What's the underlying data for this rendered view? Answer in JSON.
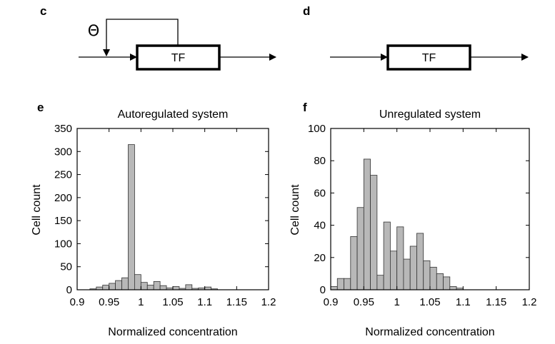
{
  "diagrams": {
    "c": {
      "letter": "c",
      "box_label": "TF",
      "feedback_symbol": "Θ"
    },
    "d": {
      "letter": "d",
      "box_label": "TF"
    }
  },
  "chart_data": [
    {
      "type": "bar",
      "letter": "e",
      "title": "Autoregulated system",
      "xlabel": "Normalized concentration",
      "ylabel": "Cell count",
      "xlim": [
        0.9,
        1.2
      ],
      "ylim": [
        0,
        350
      ],
      "xticks": [
        0.9,
        0.95,
        1,
        1.05,
        1.1,
        1.15,
        1.2
      ],
      "xtick_labels": [
        "0.9",
        "0.95",
        "1",
        "1.05",
        "1.1",
        "1.15",
        "1.2"
      ],
      "yticks": [
        0,
        50,
        100,
        150,
        200,
        250,
        300,
        350
      ],
      "ytick_labels": [
        "0",
        "50",
        "100",
        "150",
        "200",
        "250",
        "300",
        "350"
      ],
      "bin_width": 0.01,
      "bin_starts": [
        0.92,
        0.93,
        0.94,
        0.95,
        0.96,
        0.97,
        0.98,
        0.99,
        1.0,
        1.01,
        1.02,
        1.03,
        1.04,
        1.05,
        1.06,
        1.07,
        1.08,
        1.09,
        1.1,
        1.11,
        1.12,
        1.13,
        1.14
      ],
      "values": [
        2,
        6,
        10,
        14,
        20,
        26,
        315,
        33,
        16,
        10,
        18,
        9,
        4,
        7,
        3,
        11,
        3,
        4,
        6,
        2,
        0,
        0,
        0
      ]
    },
    {
      "type": "bar",
      "letter": "f",
      "title": "Unregulated system",
      "xlabel": "Normalized concentration",
      "ylabel": "Cell count",
      "xlim": [
        0.9,
        1.2
      ],
      "ylim": [
        0,
        100
      ],
      "xticks": [
        0.9,
        0.95,
        1,
        1.05,
        1.1,
        1.15,
        1.2
      ],
      "xtick_labels": [
        "0.9",
        "0.95",
        "1",
        "1.05",
        "1.1",
        "1.15",
        "1.2"
      ],
      "yticks": [
        0,
        20,
        40,
        60,
        80,
        100
      ],
      "ytick_labels": [
        "0",
        "20",
        "40",
        "60",
        "80",
        "100"
      ],
      "bin_width": 0.01,
      "bin_starts": [
        0.9,
        0.91,
        0.92,
        0.93,
        0.94,
        0.95,
        0.96,
        0.97,
        0.98,
        0.99,
        1.0,
        1.01,
        1.02,
        1.03,
        1.04,
        1.05,
        1.06,
        1.07,
        1.08,
        1.09,
        1.1,
        1.11,
        1.12,
        1.13,
        1.14,
        1.15,
        1.16,
        1.17,
        1.18,
        1.19
      ],
      "values": [
        2,
        7,
        7,
        33,
        51,
        81,
        71,
        9,
        42,
        24,
        39,
        19,
        27,
        35,
        18,
        14,
        10,
        8,
        2,
        1,
        0,
        0,
        0,
        0,
        0,
        0,
        0,
        0,
        0,
        0
      ]
    }
  ]
}
